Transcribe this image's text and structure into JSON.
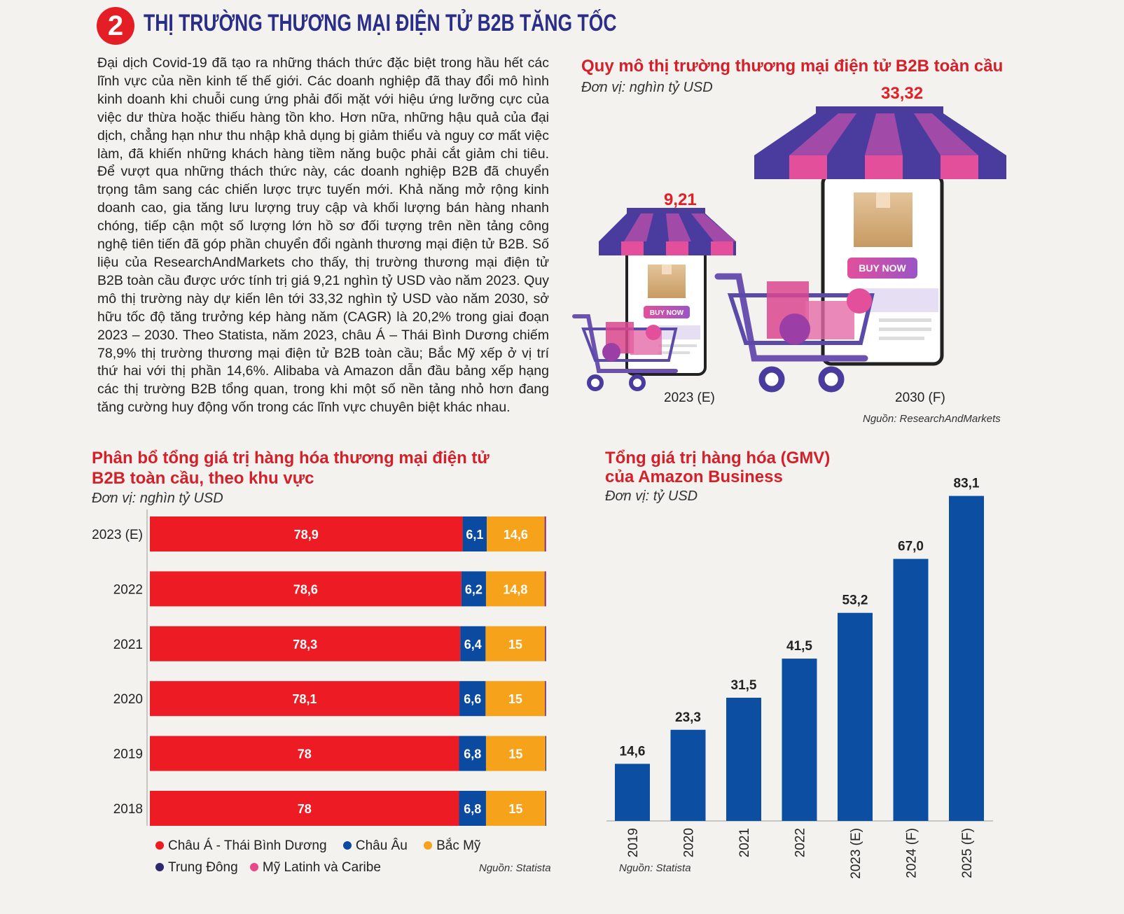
{
  "header": {
    "number": "2",
    "title": "THỊ TRƯỜNG THƯƠNG MẠI ĐIỆN TỬ B2B TĂNG TỐC"
  },
  "intro": "Đại dịch Covid-19 đã tạo ra những thách thức đặc biệt trong hầu hết các lĩnh vực của nền kinh tế thế giới. Các doanh nghiệp đã thay đổi mô hình kinh doanh khi chuỗi cung ứng phải đối mặt với hiệu ứng lưỡng cực của việc dư thừa hoặc thiếu hàng tồn kho. Hơn nữa, những hậu quả của đại dịch, chẳng hạn như thu nhập khả dụng bị giảm thiểu và nguy cơ mất việc làm, đã khiến những khách hàng tiềm năng buộc phải cắt giảm chi tiêu. Để vượt qua những thách thức này, các doanh nghiệp B2B đã chuyển trọng tâm sang các chiến lược trực tuyến mới. Khả năng mở rộng kinh doanh cao, gia tăng lưu lượng truy cập và khối lượng bán hàng nhanh chóng, tiếp cận một số lượng lớn hồ sơ đối tượng trên nền tảng công nghệ tiên tiến đã góp phần chuyển đổi ngành thương mại điện tử B2B. Số liệu của ResearchAndMarkets cho thấy, thị trường thương mại điện tử B2B toàn cầu được ước tính trị giá 9,21 nghìn tỷ USD vào năm 2023. Quy mô thị trường này dự kiến lên tới 33,32 nghìn tỷ USD vào năm 2030, sở hữu tốc độ tăng trưởng kép hàng năm (CAGR) là 20,2% trong giai đoạn 2023 – 2030. Theo Statista, năm 2023, châu Á – Thái Bình Dương chiếm 78,9% thị trường thương mại điện tử B2B toàn cầu; Bắc Mỹ xếp ở vị trí thứ hai với thị phần 14,6%. Alibaba và Amazon dẫn đầu bảng xếp hạng các thị trường B2B tổng quan, trong khi một số nền tảng nhỏ hơn đang tăng cường huy động vốn trong các lĩnh vực chuyên biệt khác nhau.",
  "market_size": {
    "title": "Quy mô thị trường thương mại điện tử B2B toàn cầu",
    "unit": "Đơn vị: nghìn tỷ USD",
    "source": "Nguồn: ResearchAndMarkets",
    "buy_now": "BUY NOW"
  },
  "distribution": {
    "title_line1": "Phân bổ tổng giá trị hàng hóa thương mại điện tử",
    "title_line2": "B2B toàn cầu, theo khu vực",
    "unit": "Đơn vị: nghìn tỷ USD",
    "source": "Nguồn: Statista",
    "legend": [
      {
        "name": "Châu Á - Thái Bình Dương",
        "color": "#ed1c24"
      },
      {
        "name": "Châu Âu",
        "color": "#0a4aa0"
      },
      {
        "name": "Bắc Mỹ",
        "color": "#f7a21b"
      },
      {
        "name": "Trung Đông",
        "color": "#2b2a6e"
      },
      {
        "name": "Mỹ Latinh và Caribe",
        "color": "#e8478b"
      }
    ]
  },
  "gmv": {
    "title_line1": "Tổng giá trị hàng hóa (GMV)",
    "title_line2": "của Amazon Business",
    "unit": "Đơn vị: tỷ USD",
    "source": "Nguồn: Statista"
  },
  "chart_data": [
    {
      "type": "bar",
      "categories": [
        "2023 (E)",
        "2030 (F)"
      ],
      "values": [
        9.21,
        33.32
      ],
      "value_labels": [
        "9,21",
        "33,32"
      ],
      "title": "Quy mô thị trường thương mại điện tử B2B toàn cầu",
      "ylabel": "Đơn vị: nghìn tỷ USD"
    },
    {
      "type": "bar",
      "orientation": "horizontal",
      "stacked": true,
      "categories": [
        "2023 (E)",
        "2022",
        "2021",
        "2020",
        "2019",
        "2018"
      ],
      "series": [
        {
          "name": "Châu Á - Thái Bình Dương",
          "color": "#ed1c24",
          "values": [
            78.9,
            78.6,
            78.3,
            78.1,
            78,
            78
          ],
          "labels": [
            "78,9",
            "78,6",
            "78,3",
            "78,1",
            "78",
            "78"
          ]
        },
        {
          "name": "Châu Âu",
          "color": "#0a4aa0",
          "values": [
            6.1,
            6.2,
            6.4,
            6.6,
            6.8,
            6.8
          ],
          "labels": [
            "6,1",
            "6,2",
            "6,4",
            "6,6",
            "6,8",
            "6,8"
          ]
        },
        {
          "name": "Bắc Mỹ",
          "color": "#f7a21b",
          "values": [
            14.6,
            14.8,
            15,
            15,
            15,
            15
          ],
          "labels": [
            "14,6",
            "14,8",
            "15",
            "15",
            "15",
            "15"
          ]
        },
        {
          "name": "Trung Đông",
          "color": "#2b2a6e",
          "values": [
            0.2,
            0.2,
            0.2,
            0.2,
            0.2,
            0.2
          ]
        },
        {
          "name": "Mỹ Latinh và Caribe",
          "color": "#e8478b",
          "values": [
            0.2,
            0.2,
            0.1,
            0.1,
            0.0,
            0.0
          ]
        }
      ],
      "title": "Phân bổ tổng giá trị hàng hóa thương mại điện tử B2B toàn cầu, theo khu vực",
      "xlim": [
        0,
        100
      ],
      "legend_position": "bottom"
    },
    {
      "type": "bar",
      "categories": [
        "2019",
        "2020",
        "2021",
        "2022",
        "2023 (E)",
        "2024 (F)",
        "2025 (F)"
      ],
      "values": [
        14.6,
        23.3,
        31.5,
        41.5,
        53.2,
        67.0,
        83.1
      ],
      "value_labels": [
        "14,6",
        "23,3",
        "31,5",
        "41,5",
        "53,2",
        "67,0",
        "83,1"
      ],
      "title": "Tổng giá trị hàng hóa (GMV) của Amazon Business",
      "color": "#0b4ea2",
      "ylim": [
        0,
        85
      ]
    }
  ]
}
